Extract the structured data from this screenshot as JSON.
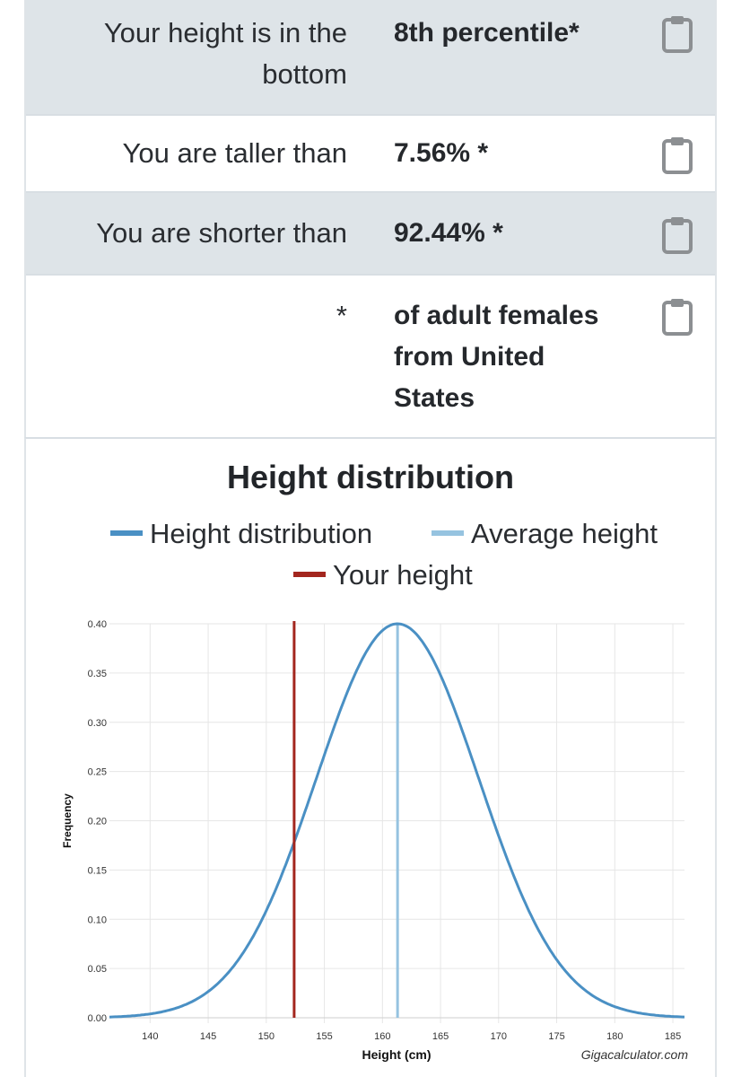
{
  "results": [
    {
      "label": "Your height is in the bottom",
      "value": "8th percentile*"
    },
    {
      "label": "You are taller than",
      "value": "7.56% *"
    },
    {
      "label": "You are shorter than",
      "value": "92.44% *"
    },
    {
      "label": "*",
      "value": "of adult females from United States"
    }
  ],
  "icons": {
    "copy": "clipboard-icon"
  },
  "colors": {
    "distribution": "#4a90c4",
    "average": "#96c3e0",
    "your_height": "#a3261e",
    "shaded_row": "#dee4e8"
  },
  "chart_data": {
    "type": "line",
    "title": "Height distribution",
    "xlabel": "Height (cm)",
    "ylabel": "Frequency",
    "credit": "Gigacalculator.com",
    "xlim": [
      136.5,
      186
    ],
    "ylim": [
      0,
      0.4
    ],
    "x_ticks": [
      140,
      145,
      150,
      155,
      160,
      165,
      170,
      175,
      180,
      185
    ],
    "y_ticks": [
      "0.00",
      "0.05",
      "0.10",
      "0.15",
      "0.20",
      "0.25",
      "0.30",
      "0.35",
      "0.40"
    ],
    "grid": true,
    "legend_position": "top",
    "series": [
      {
        "name": "Height distribution",
        "type": "normal-curve",
        "mean": 161.3,
        "sd": 7.0,
        "peak": 0.4
      },
      {
        "name": "Average height",
        "type": "vertical-line",
        "x": 161.3
      },
      {
        "name": "Your height",
        "type": "vertical-line",
        "x": 152.4
      }
    ]
  }
}
